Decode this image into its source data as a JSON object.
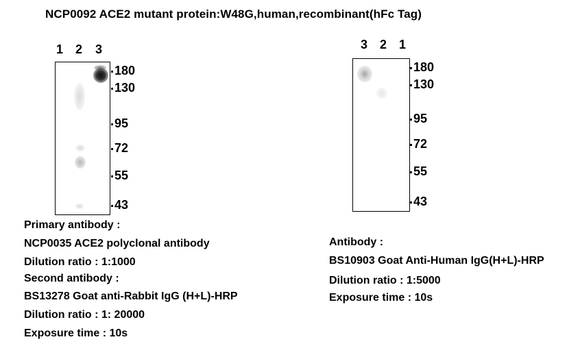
{
  "title": "NCP0092  ACE2 mutant protein:W48G,human,recombinant(hFc Tag)",
  "left_blot": {
    "lanes": [
      "1",
      "2",
      "3"
    ],
    "markers": [
      "180",
      "130",
      "95",
      "72",
      "55",
      "43"
    ]
  },
  "right_blot": {
    "lanes": [
      "3",
      "2",
      "1"
    ],
    "markers": [
      "180",
      "130",
      "95",
      "72",
      "55",
      "43"
    ]
  },
  "left_caption": {
    "primary_heading": "Primary antibody :",
    "primary_antibody": "NCP0035  ACE2 polyclonal antibody",
    "primary_dilution": "Dilution ratio : 1:1000",
    "second_heading": "Second antibody :",
    "second_antibody": "BS13278 Goat anti-Rabbit IgG (H+L)-HRP",
    "second_dilution": "Dilution ratio : 1: 20000",
    "exposure": "Exposure time :  10s"
  },
  "right_caption": {
    "heading": "Antibody :",
    "antibody": "BS10903 Goat Anti-Human IgG(H+L)-HRP",
    "dilution": "Dilution ratio : 1:5000",
    "exposure": "Exposure time : 10s"
  }
}
